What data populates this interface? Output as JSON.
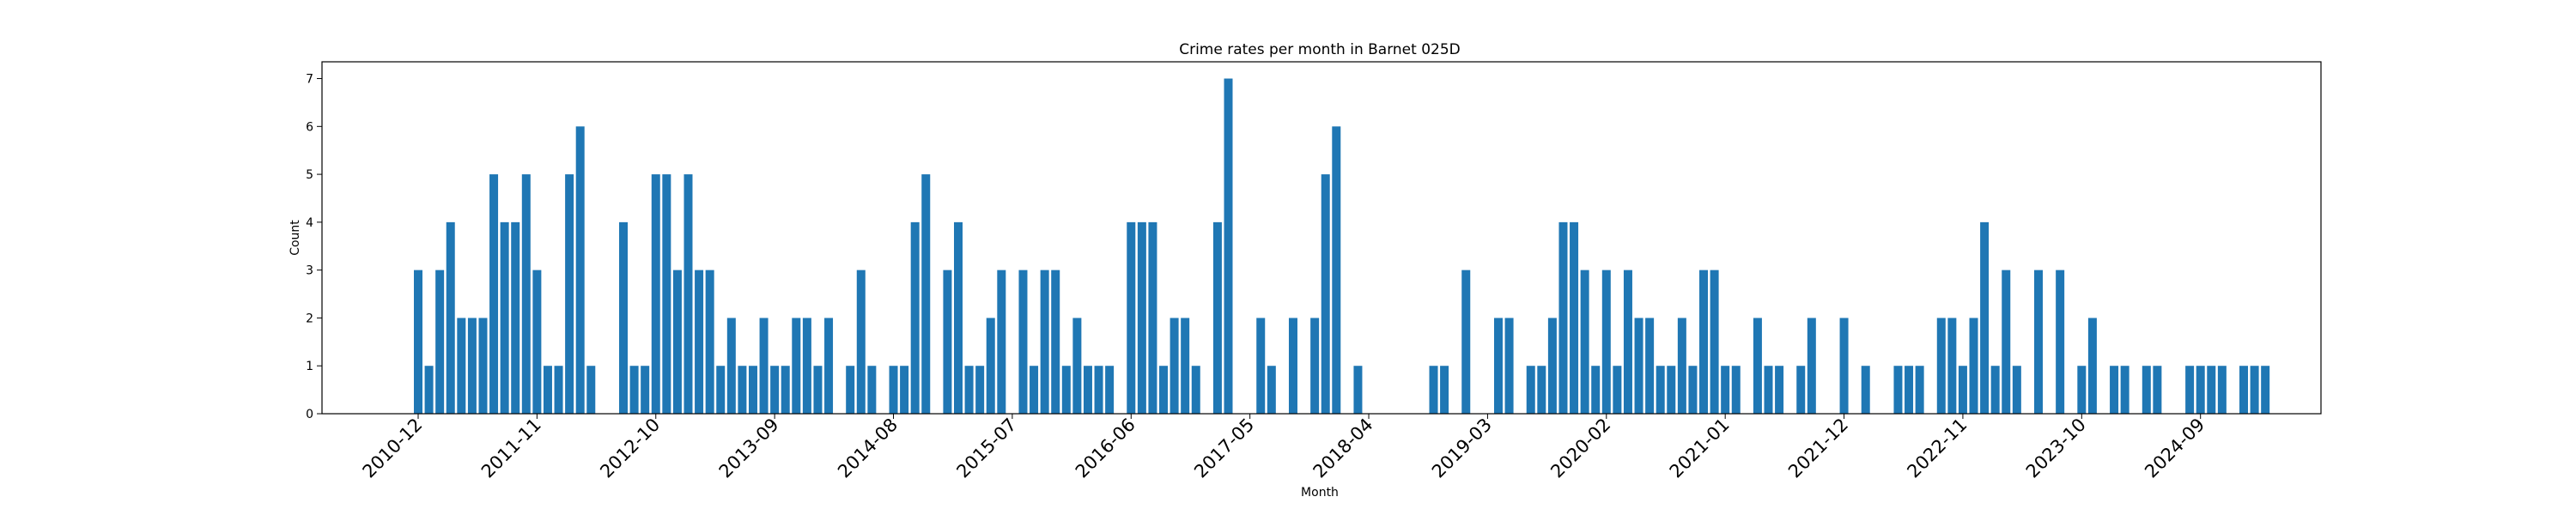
{
  "chart_data": {
    "type": "bar",
    "title": "Crime rates per month in Barnet 025D",
    "xlabel": "Month",
    "ylabel": "Count",
    "ylim": [
      0,
      7.35
    ],
    "yticks": [
      "0",
      "1",
      "2",
      "3",
      "4",
      "5",
      "6",
      "7"
    ],
    "xticks": [
      "2010-12",
      "2011-11",
      "2012-10",
      "2013-09",
      "2014-08",
      "2015-07",
      "2016-06",
      "2017-05",
      "2018-04",
      "2019-03",
      "2020-02",
      "2021-01",
      "2021-12",
      "2022-11",
      "2023-10",
      "2024-09"
    ],
    "grid": false,
    "legend": "none",
    "bar_color": "#1f77b4",
    "series": [
      {
        "values": [
          3,
          1,
          3,
          4,
          2,
          2,
          2,
          5,
          4,
          4,
          5,
          3,
          1,
          1,
          5,
          6,
          1,
          0,
          0,
          4,
          1,
          1,
          5,
          5,
          3,
          5,
          3,
          3,
          1,
          2,
          1,
          1,
          2,
          1,
          1,
          2,
          2,
          1,
          2,
          0,
          1,
          3,
          1,
          0,
          1,
          1,
          4,
          5,
          0,
          3,
          4,
          1,
          1,
          2,
          3,
          0,
          3,
          1,
          3,
          3,
          1,
          2,
          1,
          1,
          1,
          0,
          4,
          4,
          4,
          1,
          2,
          2,
          1,
          0,
          4,
          7,
          0,
          0,
          2,
          1,
          0,
          2,
          0,
          2,
          5,
          6,
          0,
          1,
          0,
          0,
          0,
          0,
          0,
          0,
          1,
          1,
          0,
          3,
          0,
          0,
          2,
          2,
          0,
          1,
          1,
          2,
          4,
          4,
          3,
          1,
          3,
          1,
          3,
          2,
          2,
          1,
          1,
          2,
          1,
          3,
          3,
          1,
          1,
          0,
          2,
          1,
          1,
          0,
          1,
          2,
          0,
          0,
          2,
          0,
          1,
          0,
          0,
          1,
          1,
          1,
          0,
          2,
          2,
          1,
          2,
          4,
          1,
          3,
          1,
          0,
          3,
          0,
          3,
          0,
          1,
          2,
          0,
          1,
          1,
          0,
          1,
          1,
          0,
          0,
          1,
          1,
          1,
          1,
          0,
          1,
          1,
          1
        ]
      }
    ]
  }
}
